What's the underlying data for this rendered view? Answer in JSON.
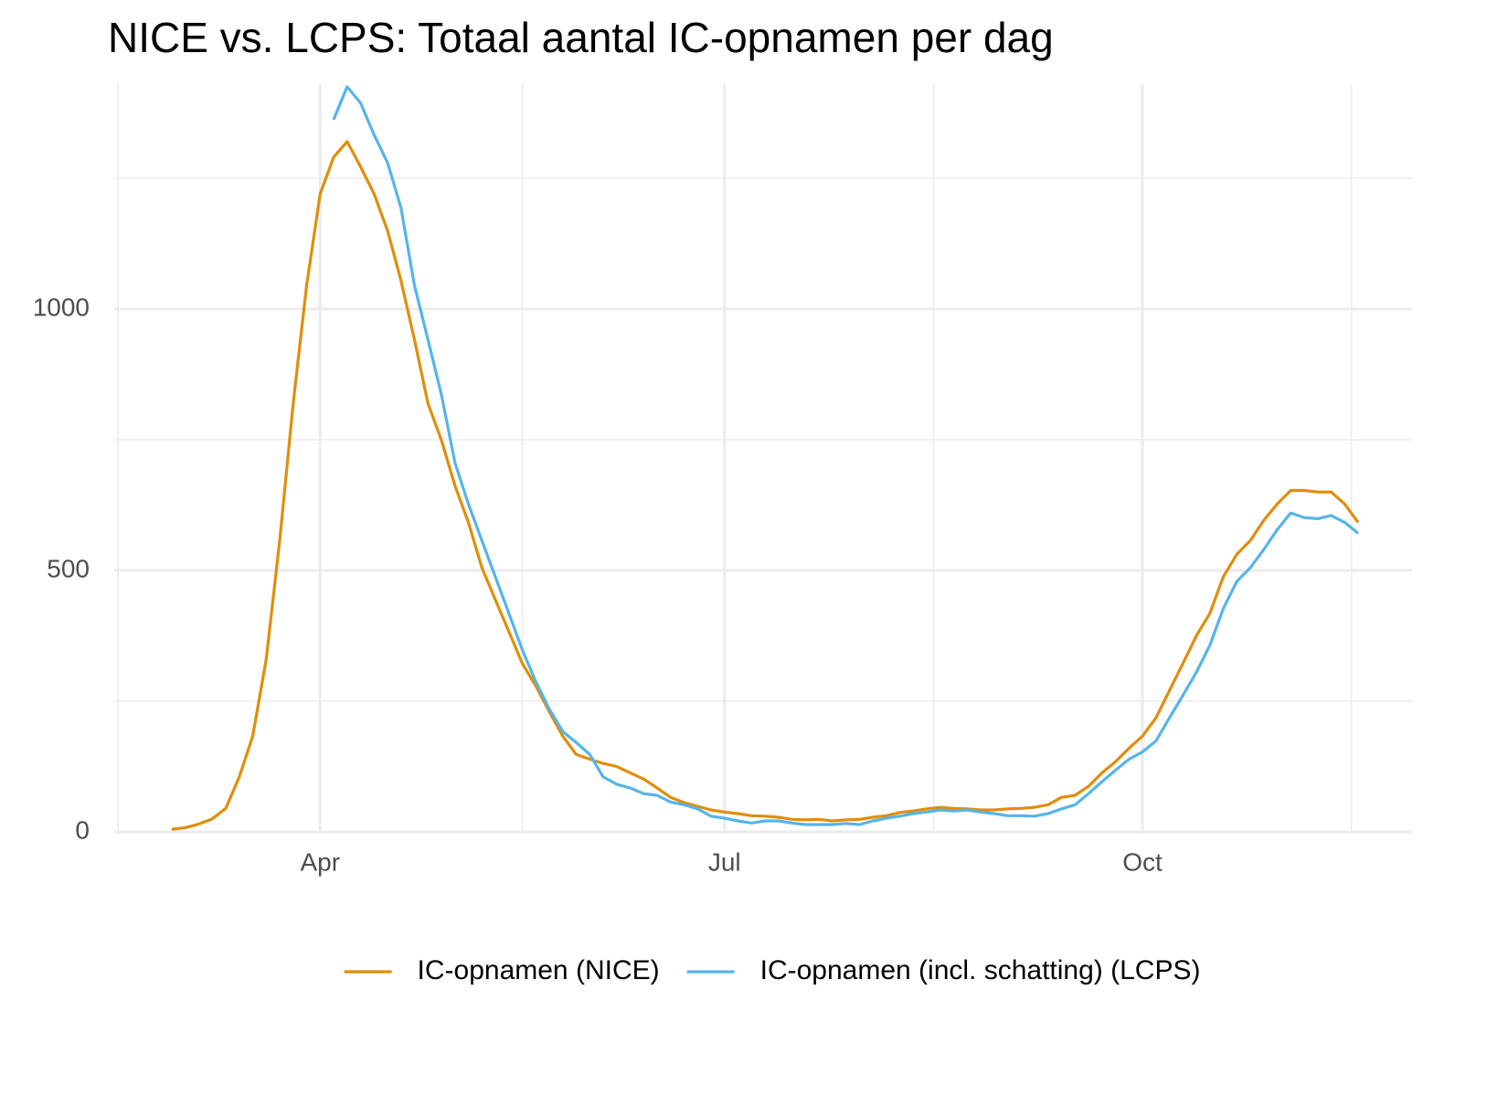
{
  "chart_data": {
    "type": "line",
    "title": "NICE vs. LCPS: Totaal aantal IC-opnamen per dag",
    "categories": [
      null,
      null,
      null,
      null,
      null,
      null,
      null,
      null,
      null,
      null,
      null,
      "Apr",
      null,
      null,
      null,
      null,
      null,
      null,
      null,
      null,
      null,
      null,
      null,
      null,
      null,
      null,
      null,
      null,
      null,
      null,
      null,
      null,
      null,
      null,
      null,
      null,
      null,
      null,
      null,
      null,
      null,
      "Jul",
      null,
      null,
      null,
      null,
      null,
      null,
      null,
      null,
      null,
      null,
      null,
      null,
      null,
      null,
      null,
      null,
      null,
      null,
      null,
      null,
      null,
      null,
      null,
      null,
      null,
      null,
      null,
      null,
      null,
      null,
      "Oct",
      null,
      null,
      null,
      null,
      null,
      null,
      null,
      null,
      null,
      null,
      null,
      null,
      null,
      null,
      null,
      null
    ],
    "series": [
      {
        "name": "IC-opnamen (NICE)",
        "color": "#e08e0b",
        "values": [
          5,
          8,
          15,
          25,
          45,
          105,
          183,
          330,
          557,
          819,
          1045,
          1220,
          1290,
          1320,
          1272,
          1220,
          1150,
          1054,
          941,
          819,
          749,
          662,
          592,
          505,
          444,
          383,
          322,
          279,
          230,
          183,
          148,
          139,
          131,
          125,
          113,
          101,
          84,
          66,
          56,
          49,
          42,
          38,
          35,
          31,
          30,
          28,
          24,
          23,
          24,
          21,
          23,
          24,
          28,
          31,
          37,
          40,
          44,
          47,
          45,
          44,
          42,
          42,
          44,
          45,
          47,
          52,
          66,
          70,
          87,
          113,
          134,
          160,
          183,
          218,
          270,
          322,
          375,
          418,
          488,
          531,
          557,
          596,
          627,
          653,
          653,
          650,
          650,
          627,
          592
        ]
      },
      {
        "name": "IC-opnamen (incl. schatting) (LCPS)",
        "color": "#56b4e9",
        "values": [
          null,
          null,
          null,
          null,
          null,
          null,
          null,
          null,
          null,
          null,
          null,
          null,
          1362,
          1425,
          1394,
          1333,
          1280,
          1193,
          1045,
          941,
          836,
          706,
          627,
          557,
          488,
          418,
          348,
          287,
          235,
          192,
          171,
          148,
          105,
          91,
          84,
          73,
          70,
          57,
          52,
          44,
          30,
          26,
          21,
          17,
          21,
          21,
          17,
          14,
          14,
          14,
          16,
          14,
          21,
          26,
          30,
          35,
          38,
          42,
          40,
          42,
          38,
          35,
          31,
          31,
          30,
          35,
          44,
          52,
          73,
          96,
          118,
          139,
          153,
          174,
          218,
          261,
          305,
          357,
          427,
          479,
          505,
          540,
          578,
          610,
          601,
          599,
          605,
          592,
          571
        ]
      }
    ],
    "ylim": [
      0,
      1430
    ],
    "yticks": [
      0,
      500,
      1000
    ],
    "minor_yticks": [
      250,
      750,
      1250
    ],
    "grid": true,
    "legend": "bottom"
  }
}
